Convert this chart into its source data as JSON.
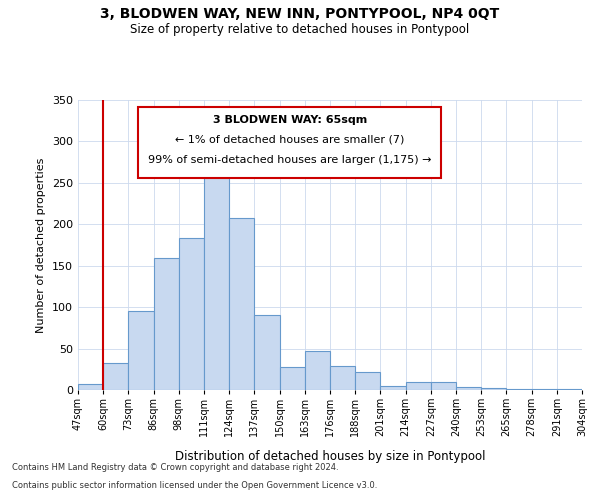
{
  "title": "3, BLODWEN WAY, NEW INN, PONTYPOOL, NP4 0QT",
  "subtitle": "Size of property relative to detached houses in Pontypool",
  "xlabel": "Distribution of detached houses by size in Pontypool",
  "ylabel": "Number of detached properties",
  "bin_labels": [
    "47sqm",
    "60sqm",
    "73sqm",
    "86sqm",
    "98sqm",
    "111sqm",
    "124sqm",
    "137sqm",
    "150sqm",
    "163sqm",
    "176sqm",
    "188sqm",
    "201sqm",
    "214sqm",
    "227sqm",
    "240sqm",
    "253sqm",
    "265sqm",
    "278sqm",
    "291sqm",
    "304sqm"
  ],
  "bar_heights": [
    7,
    33,
    95,
    159,
    184,
    265,
    207,
    90,
    28,
    47,
    29,
    22,
    5,
    10,
    10,
    4,
    2,
    1,
    1,
    1
  ],
  "bar_color": "#c8d9f0",
  "bar_edge_color": "#6699cc",
  "vline_x_idx": 1,
  "vline_color": "#cc0000",
  "ylim": [
    0,
    350
  ],
  "yticks": [
    0,
    50,
    100,
    150,
    200,
    250,
    300,
    350
  ],
  "annotation_line1": "3 BLODWEN WAY: 65sqm",
  "annotation_line2": "← 1% of detached houses are smaller (7)",
  "annotation_line3": "99% of semi-detached houses are larger (1,175) →",
  "annotation_box_color": "#cc0000",
  "footer_line1": "Contains HM Land Registry data © Crown copyright and database right 2024.",
  "footer_line2": "Contains public sector information licensed under the Open Government Licence v3.0."
}
